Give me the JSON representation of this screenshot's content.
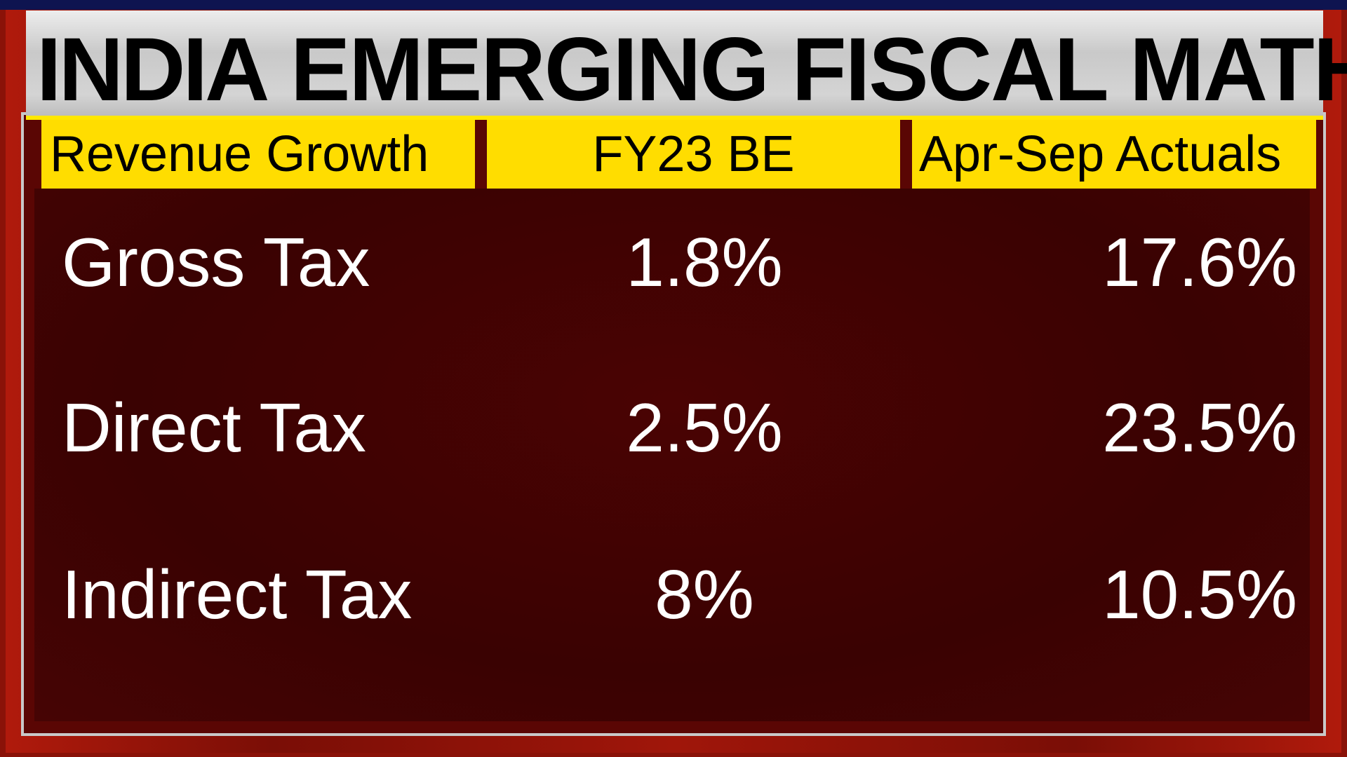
{
  "title": {
    "bold": "INDIA",
    "rest": "EMERGING FISCAL MATH"
  },
  "headers": [
    "Revenue Growth",
    "FY23 BE",
    "Apr-Sep Actuals"
  ],
  "rows": [
    {
      "label": "Gross Tax",
      "fy23_be": "1.8%",
      "apr_sep_actuals": "17.6%"
    },
    {
      "label": "Direct Tax",
      "fy23_be": "2.5%",
      "apr_sep_actuals": "23.5%"
    },
    {
      "label": "Indirect Tax",
      "fy23_be": "8%",
      "apr_sep_actuals": "10.5%"
    }
  ],
  "colors": {
    "header_yellow": "#ffdd00",
    "panel_red": "#3f0303",
    "frame_red": "#a0160a"
  }
}
